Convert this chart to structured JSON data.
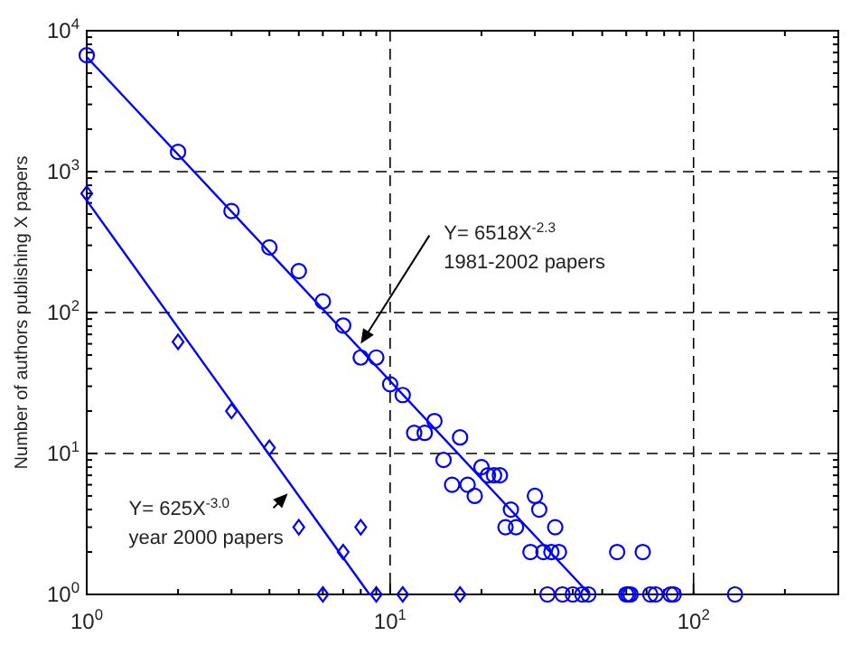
{
  "chart_data": {
    "type": "scatter",
    "ylabel": "Number of authors publishing X papers",
    "log": "xy",
    "grid": true,
    "xlim": [
      1,
      300
    ],
    "ylim": [
      1,
      10000
    ],
    "xticks": [
      {
        "value": 1,
        "label": "10$^{0}$"
      },
      {
        "value": 10,
        "label": "10$^{1}$"
      },
      {
        "value": 100,
        "label": "10$^{2}$"
      }
    ],
    "yticks": [
      {
        "value": 1,
        "label": "10$^{0}$"
      },
      {
        "value": 10,
        "label": "10$^{1}$"
      },
      {
        "value": 100,
        "label": "10$^{2}$"
      },
      {
        "value": 1000,
        "label": "10$^{3}$"
      },
      {
        "value": 10000,
        "label": "10$^{4}$"
      }
    ],
    "series": [
      {
        "marker": "circle",
        "color": "#0000ff",
        "x": [
          1,
          2,
          3,
          4,
          5,
          6,
          7,
          8,
          9,
          10,
          11,
          12,
          13,
          14,
          15,
          16,
          17,
          18,
          19,
          20,
          21,
          22,
          23,
          24,
          25,
          26,
          29,
          30,
          31,
          32,
          33,
          34,
          35,
          36,
          37,
          40,
          43,
          45,
          56,
          60,
          61,
          62,
          68,
          72,
          75,
          84,
          86,
          137
        ],
        "values": [
          6700,
          1380,
          525,
          290,
          197,
          120,
          81,
          48,
          48,
          31,
          26,
          14,
          14,
          17,
          9,
          6,
          13,
          6,
          5,
          8,
          7,
          7,
          7,
          3,
          4,
          3,
          2,
          5,
          4,
          2,
          1,
          2,
          3,
          2,
          1,
          1,
          1,
          1,
          2,
          1,
          1,
          1,
          2,
          1,
          1,
          1,
          1,
          1
        ]
      },
      {
        "marker": "diamond",
        "color": "#0000ff",
        "x": [
          1,
          2,
          3,
          4,
          5,
          6,
          7,
          8,
          9,
          11,
          17
        ],
        "values": [
          700,
          62,
          20,
          11,
          3,
          1,
          2,
          3,
          1,
          1,
          1
        ]
      },
      {
        "type": "line",
        "marker": "none",
        "color": "#0000ff",
        "x": [
          1,
          45.5
        ],
        "values": [
          6518,
          1
        ]
      },
      {
        "type": "line",
        "marker": "none",
        "color": "#0000ff",
        "x": [
          1,
          8.55
        ],
        "values": [
          625,
          1
        ]
      }
    ],
    "annotations": [
      {
        "text": "Y= 6518X$^{-2.3}$",
        "x": 8,
        "y": 60
      },
      "1981-2002 papers",
      {
        "text": "Y= 625X$^{-3.0}$",
        "x": 4.6,
        "y": 5.2
      },
      "year 2000 papers"
    ]
  }
}
